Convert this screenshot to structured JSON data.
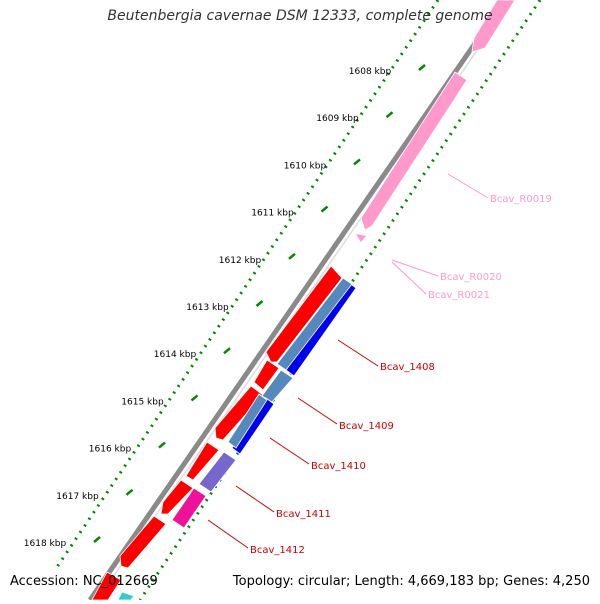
{
  "title": "Beutenbergia cavernae DSM 12333, complete genome",
  "footer": {
    "accession": "Accession: NC_012669",
    "summary": "Topology: circular; Length: 4,669,183 bp; Genes: 4,250"
  },
  "ticks": [
    "1608 kbp",
    "1609 kbp",
    "1610 kbp",
    "1611 kbp",
    "1612 kbp",
    "1613 kbp",
    "1614 kbp",
    "1615 kbp",
    "1616 kbp",
    "1617 kbp",
    "1618 kbp"
  ],
  "gene_labels": [
    {
      "text": "Bcav_R0019",
      "color": "#ff99cc"
    },
    {
      "text": "Bcav_R0020",
      "color": "#ff99cc"
    },
    {
      "text": "Bcav_R0021",
      "color": "#ff99cc"
    },
    {
      "text": "Bcav_1408",
      "color": "#cc0000"
    },
    {
      "text": "Bcav_1409",
      "color": "#cc0000"
    },
    {
      "text": "Bcav_1410",
      "color": "#cc0000"
    },
    {
      "text": "Bcav_1411",
      "color": "#cc0000"
    },
    {
      "text": "Bcav_1412",
      "color": "#cc0000"
    }
  ],
  "colors": {
    "cds": "#ff0000",
    "rrna": "#ff99cc",
    "feature_blue": "#0000ee",
    "feature_steelblue": "#5588bb",
    "feature_purple": "#7766cc",
    "feature_magenta": "#ee1199",
    "feature_cyan": "#33cccc",
    "gc_dots": "#008800",
    "backbone": "#888888"
  }
}
